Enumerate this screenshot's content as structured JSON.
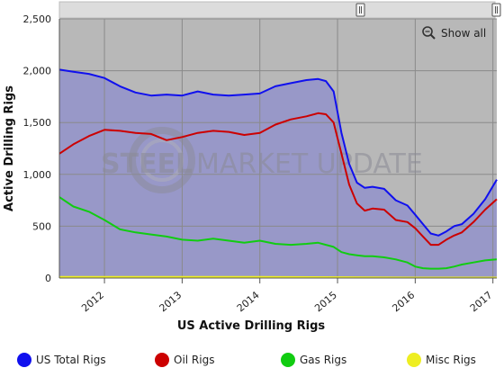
{
  "chart_data": {
    "type": "area",
    "title": "",
    "xlabel": "US Active Drilling Rigs",
    "ylabel": "Active Drilling Rigs",
    "ylim": [
      0,
      2500
    ],
    "xlim": [
      2011.42,
      2017.05
    ],
    "y_ticks": [
      0,
      500,
      1000,
      1500,
      2000,
      2500
    ],
    "y_tick_labels": [
      "0",
      "500",
      "1,000",
      "1,500",
      "2,000",
      "2,500"
    ],
    "x_ticks": [
      2012,
      2013,
      2014,
      2015,
      2016,
      2017
    ],
    "x_tick_labels": [
      "2012",
      "2013",
      "2014",
      "2015",
      "2016",
      "2017"
    ],
    "grid": true,
    "legend": "bottom",
    "series": [
      {
        "name": "US Total Rigs",
        "color": "#1010ee",
        "x": [
          2011.42,
          2011.6,
          2011.8,
          2012.0,
          2012.2,
          2012.4,
          2012.6,
          2012.8,
          2013.0,
          2013.2,
          2013.4,
          2013.6,
          2013.8,
          2014.0,
          2014.2,
          2014.4,
          2014.6,
          2014.75,
          2014.85,
          2014.95,
          2015.05,
          2015.15,
          2015.25,
          2015.35,
          2015.45,
          2015.6,
          2015.75,
          2015.9,
          2016.0,
          2016.1,
          2016.2,
          2016.3,
          2016.4,
          2016.5,
          2016.6,
          2016.75,
          2016.9,
          2017.05
        ],
        "values": [
          2010,
          1990,
          1970,
          1930,
          1850,
          1790,
          1760,
          1770,
          1760,
          1800,
          1770,
          1760,
          1770,
          1780,
          1850,
          1880,
          1910,
          1920,
          1900,
          1800,
          1400,
          1100,
          920,
          870,
          880,
          860,
          750,
          700,
          610,
          520,
          430,
          410,
          450,
          500,
          520,
          620,
          760,
          950
        ]
      },
      {
        "name": "Oil Rigs",
        "color": "#cc0000",
        "x": [
          2011.42,
          2011.6,
          2011.8,
          2012.0,
          2012.2,
          2012.4,
          2012.6,
          2012.8,
          2013.0,
          2013.2,
          2013.4,
          2013.6,
          2013.8,
          2014.0,
          2014.2,
          2014.4,
          2014.6,
          2014.75,
          2014.85,
          2014.95,
          2015.05,
          2015.15,
          2015.25,
          2015.35,
          2015.45,
          2015.6,
          2015.75,
          2015.9,
          2016.0,
          2016.1,
          2016.2,
          2016.3,
          2016.4,
          2016.5,
          2016.6,
          2016.75,
          2016.9,
          2017.05
        ],
        "values": [
          1200,
          1290,
          1370,
          1430,
          1420,
          1400,
          1390,
          1330,
          1360,
          1400,
          1420,
          1410,
          1380,
          1400,
          1480,
          1530,
          1560,
          1590,
          1580,
          1500,
          1200,
          900,
          720,
          650,
          670,
          660,
          560,
          540,
          480,
          400,
          320,
          320,
          370,
          410,
          440,
          540,
          660,
          760
        ]
      },
      {
        "name": "Gas Rigs",
        "color": "#11cc11",
        "x": [
          2011.42,
          2011.6,
          2011.8,
          2012.0,
          2012.2,
          2012.4,
          2012.6,
          2012.8,
          2013.0,
          2013.2,
          2013.4,
          2013.6,
          2013.8,
          2014.0,
          2014.2,
          2014.4,
          2014.6,
          2014.75,
          2014.85,
          2014.95,
          2015.05,
          2015.15,
          2015.25,
          2015.35,
          2015.45,
          2015.6,
          2015.75,
          2015.9,
          2016.0,
          2016.1,
          2016.2,
          2016.3,
          2016.4,
          2016.5,
          2016.6,
          2016.75,
          2016.9,
          2017.05
        ],
        "values": [
          780,
          690,
          640,
          560,
          470,
          440,
          420,
          400,
          370,
          360,
          380,
          360,
          340,
          360,
          330,
          320,
          330,
          340,
          320,
          300,
          250,
          230,
          220,
          210,
          210,
          200,
          180,
          150,
          110,
          95,
          90,
          90,
          95,
          110,
          130,
          150,
          170,
          180
        ]
      },
      {
        "name": "Misc Rigs",
        "color": "#eeee22",
        "x": [
          2011.42,
          2012.0,
          2013.0,
          2014.0,
          2015.0,
          2016.0,
          2017.05
        ],
        "values": [
          10,
          10,
          10,
          10,
          8,
          4,
          4
        ]
      }
    ]
  },
  "controls": {
    "show_all_label": "Show all",
    "magnifier_icon": "magnifier-icon"
  },
  "watermark": {
    "text_bold": "STEEL",
    "text_regular": "MARKET UPDATE"
  },
  "colors": {
    "plot_background": "#b8b8b8",
    "area_fill": "#9898c8"
  }
}
